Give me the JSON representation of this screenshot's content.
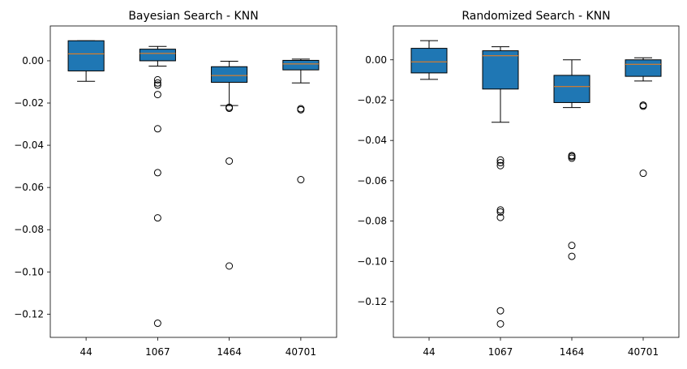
{
  "chart_data": [
    {
      "type": "box",
      "title": "Bayesian Search - KNN",
      "xlabel": "",
      "ylabel": "",
      "categories": [
        "44",
        "1067",
        "1464",
        "40701"
      ],
      "ylim": [
        -0.131,
        0.0165
      ],
      "yticks": [
        0.0,
        -0.02,
        -0.04,
        -0.06,
        -0.08,
        -0.1,
        -0.12
      ],
      "ytick_labels": [
        "0.00",
        "−0.02",
        "−0.04",
        "−0.06",
        "−0.08",
        "−0.10",
        "−0.12"
      ],
      "box_color": "#1f77b4",
      "median_color": "#ff7f0e",
      "boxes": [
        {
          "label": "44",
          "whisker_low": -0.0097,
          "q1": -0.0048,
          "median": 0.0033,
          "q3": 0.0095,
          "whisker_high": 0.0095,
          "outliers": []
        },
        {
          "label": "1067",
          "whisker_low": -0.0025,
          "q1": 0.0,
          "median": 0.0035,
          "q3": 0.0055,
          "whisker_high": 0.0068,
          "outliers": [
            -0.009,
            -0.0105,
            -0.0115,
            -0.016,
            -0.0322,
            -0.053,
            -0.0744,
            -0.1243
          ]
        },
        {
          "label": "1464",
          "whisker_low": -0.0212,
          "q1": -0.0102,
          "median": -0.007,
          "q3": -0.0028,
          "whisker_high": -0.0002,
          "outliers": [
            -0.022,
            -0.0225,
            -0.0475,
            -0.0972
          ]
        },
        {
          "label": "40701",
          "whisker_low": -0.0105,
          "q1": -0.0043,
          "median": -0.0015,
          "q3": 0.0002,
          "whisker_high": 0.0008,
          "outliers": [
            -0.0227,
            -0.0232,
            -0.0563
          ]
        }
      ]
    },
    {
      "type": "box",
      "title": "Randomized Search -  KNN",
      "xlabel": "",
      "ylabel": "",
      "categories": [
        "44",
        "1067",
        "1464",
        "40701"
      ],
      "ylim": [
        -0.1377,
        0.0168
      ],
      "yticks": [
        0.0,
        -0.02,
        -0.04,
        -0.06,
        -0.08,
        -0.1,
        -0.12
      ],
      "ytick_labels": [
        "0.00",
        "−0.02",
        "−0.04",
        "−0.06",
        "−0.08",
        "−0.10",
        "−0.12"
      ],
      "box_color": "#1f77b4",
      "median_color": "#ff7f0e",
      "boxes": [
        {
          "label": "44",
          "whisker_low": -0.0097,
          "q1": -0.0065,
          "median": -0.001,
          "q3": 0.0057,
          "whisker_high": 0.0095,
          "outliers": []
        },
        {
          "label": "1067",
          "whisker_low": -0.031,
          "q1": -0.0145,
          "median": 0.002,
          "q3": 0.0045,
          "whisker_high": 0.0065,
          "outliers": [
            -0.0497,
            -0.051,
            -0.0525,
            -0.0745,
            -0.0755,
            -0.0782,
            -0.1245,
            -0.131
          ]
        },
        {
          "label": "1464",
          "whisker_low": -0.0237,
          "q1": -0.0212,
          "median": -0.0133,
          "q3": -0.0077,
          "whisker_high": 0.0,
          "outliers": [
            -0.0475,
            -0.048,
            -0.0488,
            -0.0921,
            -0.0975
          ]
        },
        {
          "label": "40701",
          "whisker_low": -0.0105,
          "q1": -0.0082,
          "median": -0.0022,
          "q3": 0.0,
          "whisker_high": 0.001,
          "outliers": [
            -0.0225,
            -0.023,
            -0.0563
          ]
        }
      ]
    }
  ]
}
